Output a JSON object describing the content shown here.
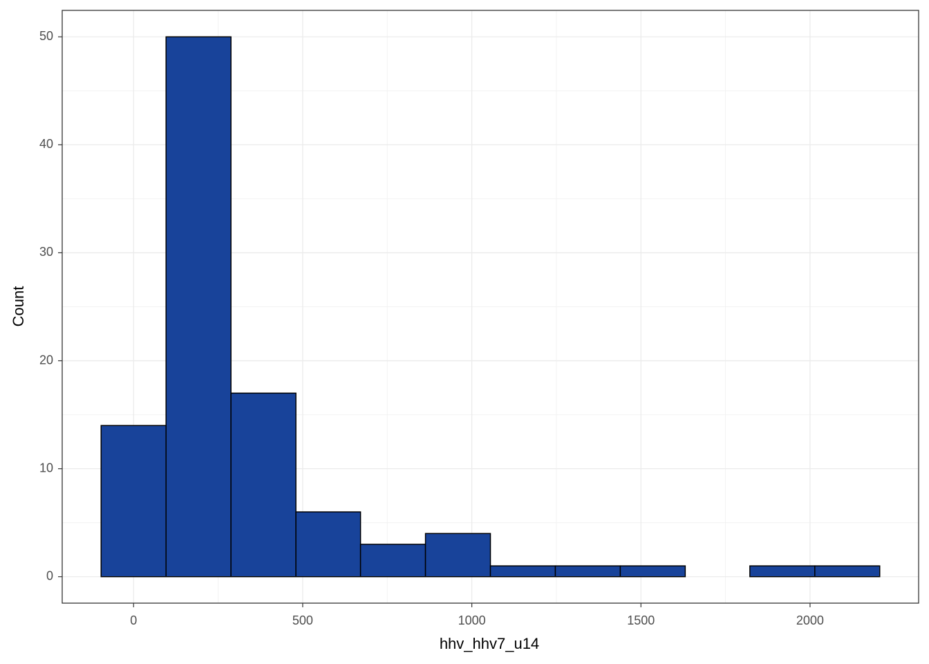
{
  "chart_data": {
    "type": "histogram",
    "x_label": "hhv_hhv7_u14",
    "y_label": "Count",
    "bins": [
      -96,
      96,
      288,
      480,
      671,
      863,
      1055,
      1247,
      1439,
      1631,
      1822,
      2014,
      2206
    ],
    "values": [
      14,
      50,
      17,
      6,
      3,
      4,
      1,
      1,
      1,
      0,
      1,
      1
    ],
    "color": "#18439a",
    "edge_color": "#000000",
    "xlim": [
      -211,
      2321
    ],
    "ylim": [
      -2.45,
      52.45
    ],
    "xticks": [
      0,
      500,
      1000,
      1500,
      2000
    ],
    "yticks": [
      0,
      10,
      20,
      30,
      40,
      50
    ],
    "grid": true,
    "minor_grid": true
  }
}
